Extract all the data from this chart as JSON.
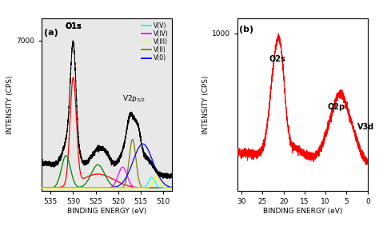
{
  "panel_a": {
    "label": "(a)",
    "xlabel": "BINDING ENERGY (eV)",
    "ylabel": "INTENSITY (CPS)",
    "ytop_label": "7000",
    "xlim": [
      537,
      508
    ],
    "xticks": [
      535,
      530,
      525,
      520,
      515,
      510
    ],
    "annotation_o1s": "O1s",
    "annotation_v2p": "V2p$_{3/2}$",
    "legend_labels": [
      "V(V)",
      "V(IV)",
      "V(III)",
      "V(II)",
      "V(0)"
    ],
    "legend_colors": [
      "cyan",
      "magenta",
      "yellow",
      "#808000",
      "blue"
    ]
  },
  "panel_b": {
    "label": "(b)",
    "xlabel": "BINDING ENERGY (eV)",
    "ylabel": "INTENSITY (CPS)",
    "ytop_label": "1000",
    "xlim": [
      31,
      0
    ],
    "xticks": [
      30,
      25,
      20,
      15,
      10,
      5,
      0
    ],
    "annotation_o2s": "O2s",
    "annotation_o2p": "O2p",
    "annotation_v3d": "V3d"
  }
}
